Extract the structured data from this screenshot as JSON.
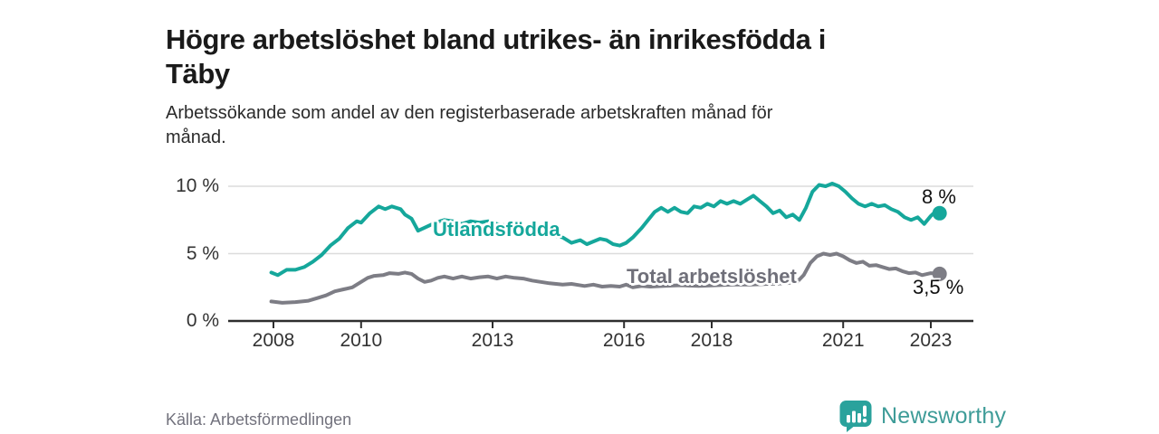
{
  "title": "Högre arbetslöshet bland utrikes- än inrikesfödda i Täby",
  "title_lines": [
    "Högre arbetslöshet bland utrikes- än inrikesfödda i",
    "Täby"
  ],
  "subtitle": "Arbetssökande som andel av den registerbaserade arbetskraften månad för månad.",
  "subtitle_lines": [
    "Arbetssökande som andel av den registerbaserade arbetskraften månad för",
    "månad."
  ],
  "source": "Källa: Arbetsförmedlingen",
  "branding": {
    "name": "Newsworthy",
    "icon": "bar-chart-speech-bubble-icon",
    "color": "#3e9c98",
    "icon_color": "#2aa29c"
  },
  "colors": {
    "foreign_born_line": "#15a79b",
    "total_line": "#7d7d85",
    "total_label_text": "#6f6f79",
    "end_label_text": "#111111",
    "grid": "#dcdcdc",
    "axis": "#2e2e2e",
    "axis_text": "#333333",
    "title_text": "#1a1a1a",
    "source_text": "#72727d"
  },
  "chart_data": {
    "type": "line",
    "title": "Högre arbetslöshet bland utrikes- än inrikesfödda i Täby",
    "subtitle": "Arbetssökande som andel av den registerbaserade arbetskraften månad för månad.",
    "xlabel": "",
    "ylabel": "",
    "unit": "%",
    "grid": "horizontal",
    "legend_position": "inline-labels",
    "x_axis": {
      "range": [
        2007.6,
        2024.0
      ],
      "ticks": [
        2008,
        2010,
        2013,
        2016,
        2018,
        2021,
        2023
      ],
      "tick_labels": [
        "2008",
        "2010",
        "2013",
        "2016",
        "2018",
        "2021",
        "2023"
      ]
    },
    "y_axis": {
      "range": [
        0,
        10.5
      ],
      "ticks": [
        0,
        5,
        10
      ],
      "tick_labels": [
        "0 %",
        "5 %",
        "10 %"
      ]
    },
    "series": [
      {
        "name": "Utlandsfödda",
        "color": "#15a79b",
        "end_label": "8 %",
        "end_value": 8.0,
        "points": [
          [
            2007.95,
            3.6
          ],
          [
            2008.1,
            3.4
          ],
          [
            2008.3,
            3.8
          ],
          [
            2008.5,
            3.8
          ],
          [
            2008.7,
            4.0
          ],
          [
            2008.9,
            4.4
          ],
          [
            2009.1,
            4.9
          ],
          [
            2009.3,
            5.6
          ],
          [
            2009.5,
            6.1
          ],
          [
            2009.7,
            6.9
          ],
          [
            2009.9,
            7.4
          ],
          [
            2010.0,
            7.3
          ],
          [
            2010.2,
            8.0
          ],
          [
            2010.4,
            8.5
          ],
          [
            2010.55,
            8.3
          ],
          [
            2010.7,
            8.5
          ],
          [
            2010.9,
            8.3
          ],
          [
            2011.0,
            7.9
          ],
          [
            2011.15,
            7.6
          ],
          [
            2011.3,
            6.7
          ],
          [
            2011.5,
            7.0
          ],
          [
            2011.7,
            7.3
          ],
          [
            2011.9,
            7.5
          ],
          [
            2012.1,
            7.4
          ],
          [
            2012.3,
            7.2
          ],
          [
            2012.5,
            7.4
          ],
          [
            2012.7,
            7.3
          ],
          [
            2012.9,
            7.4
          ],
          [
            2013.1,
            7.2
          ],
          [
            2013.3,
            7.1
          ],
          [
            2013.5,
            6.9
          ],
          [
            2013.7,
            6.8
          ],
          [
            2013.9,
            6.6
          ],
          [
            2014.1,
            6.5
          ],
          [
            2014.3,
            6.4
          ],
          [
            2014.6,
            6.2
          ],
          [
            2014.8,
            5.8
          ],
          [
            2015.0,
            6.0
          ],
          [
            2015.15,
            5.7
          ],
          [
            2015.3,
            5.9
          ],
          [
            2015.45,
            6.1
          ],
          [
            2015.6,
            6.0
          ],
          [
            2015.75,
            5.7
          ],
          [
            2015.9,
            5.6
          ],
          [
            2016.05,
            5.8
          ],
          [
            2016.2,
            6.2
          ],
          [
            2016.4,
            6.9
          ],
          [
            2016.55,
            7.5
          ],
          [
            2016.7,
            8.1
          ],
          [
            2016.85,
            8.4
          ],
          [
            2017.0,
            8.1
          ],
          [
            2017.15,
            8.4
          ],
          [
            2017.3,
            8.1
          ],
          [
            2017.45,
            8.0
          ],
          [
            2017.6,
            8.5
          ],
          [
            2017.75,
            8.4
          ],
          [
            2017.9,
            8.7
          ],
          [
            2018.05,
            8.5
          ],
          [
            2018.2,
            8.9
          ],
          [
            2018.35,
            8.7
          ],
          [
            2018.5,
            8.9
          ],
          [
            2018.65,
            8.7
          ],
          [
            2018.8,
            9.0
          ],
          [
            2018.95,
            9.3
          ],
          [
            2019.1,
            8.9
          ],
          [
            2019.25,
            8.5
          ],
          [
            2019.4,
            8.0
          ],
          [
            2019.55,
            8.2
          ],
          [
            2019.7,
            7.7
          ],
          [
            2019.85,
            7.9
          ],
          [
            2020.0,
            7.5
          ],
          [
            2020.15,
            8.4
          ],
          [
            2020.3,
            9.6
          ],
          [
            2020.45,
            10.1
          ],
          [
            2020.6,
            10.0
          ],
          [
            2020.75,
            10.2
          ],
          [
            2020.9,
            10.0
          ],
          [
            2021.05,
            9.6
          ],
          [
            2021.2,
            9.1
          ],
          [
            2021.35,
            8.7
          ],
          [
            2021.5,
            8.5
          ],
          [
            2021.65,
            8.7
          ],
          [
            2021.8,
            8.5
          ],
          [
            2021.95,
            8.6
          ],
          [
            2022.1,
            8.3
          ],
          [
            2022.25,
            8.1
          ],
          [
            2022.4,
            7.7
          ],
          [
            2022.55,
            7.5
          ],
          [
            2022.7,
            7.7
          ],
          [
            2022.85,
            7.2
          ],
          [
            2023.0,
            7.8
          ],
          [
            2023.1,
            8.1
          ],
          [
            2023.2,
            8.0
          ]
        ]
      },
      {
        "name": "Total arbetslöshet",
        "color": "#7d7d85",
        "end_label": "3,5 %",
        "end_value": 3.5,
        "points": [
          [
            2007.95,
            1.45
          ],
          [
            2008.2,
            1.35
          ],
          [
            2008.5,
            1.4
          ],
          [
            2008.8,
            1.5
          ],
          [
            2009.0,
            1.7
          ],
          [
            2009.2,
            1.9
          ],
          [
            2009.4,
            2.2
          ],
          [
            2009.6,
            2.35
          ],
          [
            2009.8,
            2.5
          ],
          [
            2010.0,
            2.9
          ],
          [
            2010.15,
            3.2
          ],
          [
            2010.3,
            3.35
          ],
          [
            2010.5,
            3.4
          ],
          [
            2010.65,
            3.55
          ],
          [
            2010.85,
            3.5
          ],
          [
            2011.0,
            3.6
          ],
          [
            2011.15,
            3.5
          ],
          [
            2011.3,
            3.15
          ],
          [
            2011.45,
            2.9
          ],
          [
            2011.6,
            3.0
          ],
          [
            2011.75,
            3.2
          ],
          [
            2011.9,
            3.3
          ],
          [
            2012.1,
            3.15
          ],
          [
            2012.3,
            3.3
          ],
          [
            2012.5,
            3.15
          ],
          [
            2012.7,
            3.25
          ],
          [
            2012.9,
            3.3
          ],
          [
            2013.1,
            3.15
          ],
          [
            2013.3,
            3.3
          ],
          [
            2013.5,
            3.2
          ],
          [
            2013.7,
            3.15
          ],
          [
            2013.9,
            3.0
          ],
          [
            2014.1,
            2.9
          ],
          [
            2014.3,
            2.8
          ],
          [
            2014.6,
            2.7
          ],
          [
            2014.8,
            2.75
          ],
          [
            2015.1,
            2.6
          ],
          [
            2015.3,
            2.7
          ],
          [
            2015.5,
            2.55
          ],
          [
            2015.7,
            2.6
          ],
          [
            2015.9,
            2.55
          ],
          [
            2016.05,
            2.7
          ],
          [
            2016.2,
            2.5
          ],
          [
            2016.4,
            2.6
          ],
          [
            2016.6,
            2.55
          ],
          [
            2016.9,
            2.6
          ],
          [
            2017.3,
            2.65
          ],
          [
            2017.7,
            2.6
          ],
          [
            2018.1,
            2.65
          ],
          [
            2018.5,
            2.7
          ],
          [
            2018.9,
            2.7
          ],
          [
            2019.3,
            2.75
          ],
          [
            2019.7,
            2.8
          ],
          [
            2019.95,
            2.9
          ],
          [
            2020.1,
            3.4
          ],
          [
            2020.25,
            4.3
          ],
          [
            2020.4,
            4.8
          ],
          [
            2020.55,
            5.0
          ],
          [
            2020.7,
            4.9
          ],
          [
            2020.85,
            5.0
          ],
          [
            2021.0,
            4.8
          ],
          [
            2021.15,
            4.5
          ],
          [
            2021.3,
            4.3
          ],
          [
            2021.45,
            4.4
          ],
          [
            2021.6,
            4.1
          ],
          [
            2021.75,
            4.15
          ],
          [
            2021.9,
            4.0
          ],
          [
            2022.05,
            3.85
          ],
          [
            2022.2,
            3.9
          ],
          [
            2022.35,
            3.7
          ],
          [
            2022.5,
            3.55
          ],
          [
            2022.65,
            3.6
          ],
          [
            2022.8,
            3.4
          ],
          [
            2023.0,
            3.55
          ],
          [
            2023.2,
            3.5
          ]
        ]
      }
    ]
  }
}
